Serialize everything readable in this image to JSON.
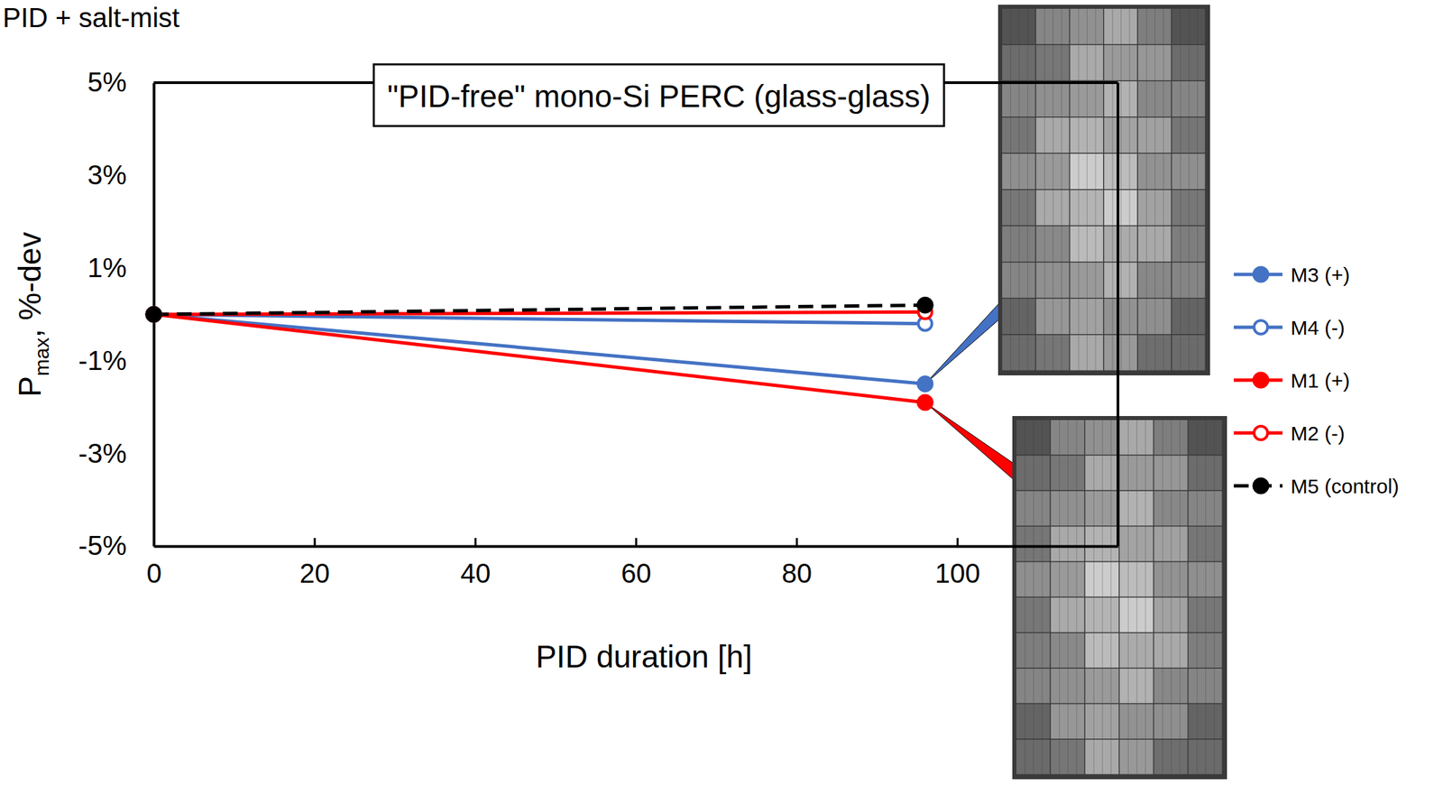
{
  "chart_data": {
    "type": "line",
    "title": "PID + salt-mist",
    "annotation": "\"PID-free\" mono-Si PERC (glass-glass)",
    "xlabel": "PID duration [h]",
    "ylabel": "Pmax, %-dev",
    "x": [
      0,
      96
    ],
    "series": [
      {
        "name": "M3 (+)",
        "color": "#4472c4",
        "values": [
          0,
          -1.5
        ],
        "marker": "circle",
        "line_style": "solid"
      },
      {
        "name": "M4 (-)",
        "color": "#4472c4",
        "values": [
          0,
          -0.2
        ],
        "marker": "open-circle",
        "line_style": "solid"
      },
      {
        "name": "M1 (+)",
        "color": "#ff0000",
        "values": [
          0,
          -1.9
        ],
        "marker": "circle",
        "line_style": "solid"
      },
      {
        "name": "M2 (-)",
        "color": "#ff0000",
        "values": [
          0,
          0.05
        ],
        "marker": "open-circle",
        "line_style": "solid"
      },
      {
        "name": "M5 (control)",
        "color": "#000000",
        "values": [
          0,
          0.2
        ],
        "marker": "circle",
        "line_style": "dashed"
      }
    ],
    "xlim": [
      0,
      120
    ],
    "ylim": [
      -5,
      5
    ],
    "xticks": [
      0,
      20,
      40,
      60,
      80,
      100
    ],
    "yticks": [
      {
        "value": -5,
        "label": "-5%"
      },
      {
        "value": -3,
        "label": "-3%"
      },
      {
        "value": -1,
        "label": "-1%"
      },
      {
        "value": 1,
        "label": "1%"
      },
      {
        "value": 3,
        "label": "3%"
      },
      {
        "value": 5,
        "label": "5%"
      }
    ],
    "grid": false,
    "legend": "right"
  }
}
